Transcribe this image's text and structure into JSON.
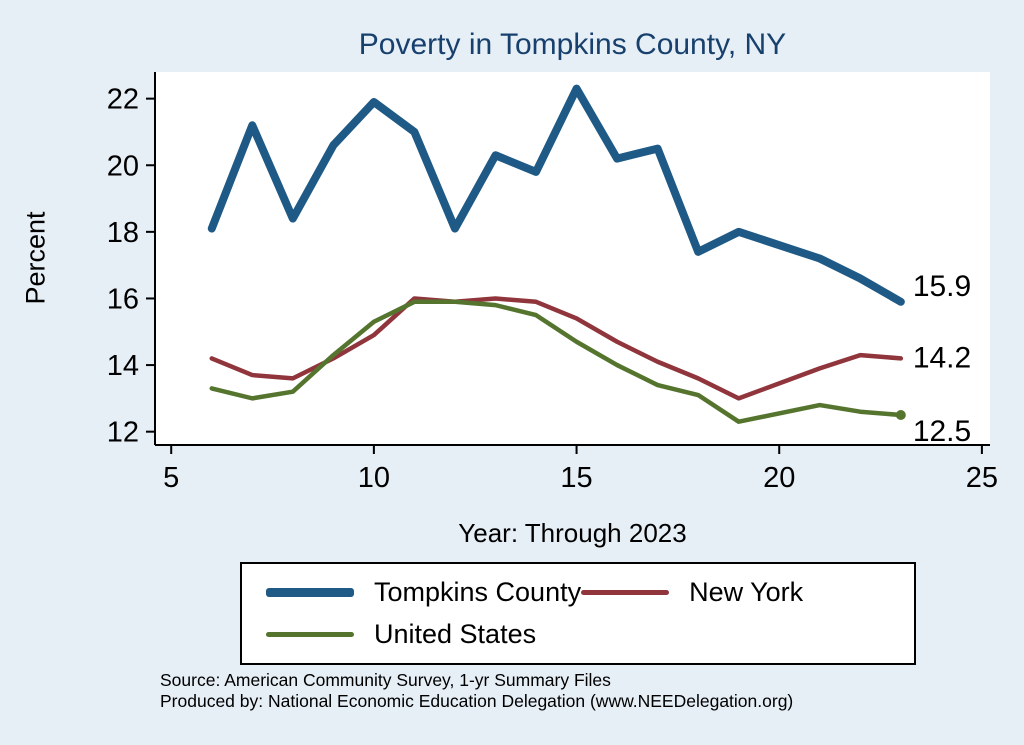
{
  "footer": {
    "source": "Source: American Community Survey, 1-yr Summary Files",
    "produced_by": "Produced by: National Economic Education Delegation (www.NEEDelegation.org)"
  },
  "chart_data": {
    "type": "line",
    "title": "Poverty in Tompkins County, NY",
    "xlabel": "Year: Through 2023",
    "ylabel": "Percent",
    "xlim": [
      4.6,
      25.2
    ],
    "ylim": [
      11.6,
      22.8
    ],
    "x_ticks": [
      5,
      10,
      15,
      20,
      25
    ],
    "y_ticks": [
      12,
      14,
      16,
      18,
      20,
      22
    ],
    "grid": false,
    "legend_position": "bottom",
    "background": "#e6eef6",
    "plot_background": "#ffffff",
    "title_color": "#17406d",
    "x": [
      6,
      7,
      8,
      9,
      10,
      11,
      12,
      13,
      14,
      15,
      16,
      17,
      18,
      19,
      21,
      22,
      23
    ],
    "series": [
      {
        "name": "Tompkins County",
        "color": "#1f5a86",
        "width": 8,
        "end_label": "15.9",
        "end_label_dy": -6,
        "end_marker": false,
        "values": [
          18.1,
          21.2,
          18.4,
          20.6,
          21.9,
          21.0,
          18.1,
          20.3,
          19.8,
          22.3,
          20.2,
          20.5,
          17.4,
          18.0,
          17.2,
          16.6,
          15.9
        ]
      },
      {
        "name": "New York",
        "color": "#90353b",
        "width": 4.5,
        "end_label": "14.2",
        "end_label_dy": 9,
        "end_marker": false,
        "values": [
          14.2,
          13.7,
          13.6,
          14.2,
          14.9,
          16.0,
          15.9,
          16.0,
          15.9,
          15.4,
          14.7,
          14.1,
          13.6,
          13.0,
          13.9,
          14.3,
          14.2
        ]
      },
      {
        "name": "United States",
        "color": "#55752f",
        "width": 4.5,
        "end_label": "12.5",
        "end_label_dy": 26,
        "end_marker": true,
        "values": [
          13.3,
          13.0,
          13.2,
          14.3,
          15.3,
          15.9,
          15.9,
          15.8,
          15.5,
          14.7,
          14.0,
          13.4,
          13.1,
          12.3,
          12.8,
          12.6,
          12.5
        ]
      }
    ]
  }
}
